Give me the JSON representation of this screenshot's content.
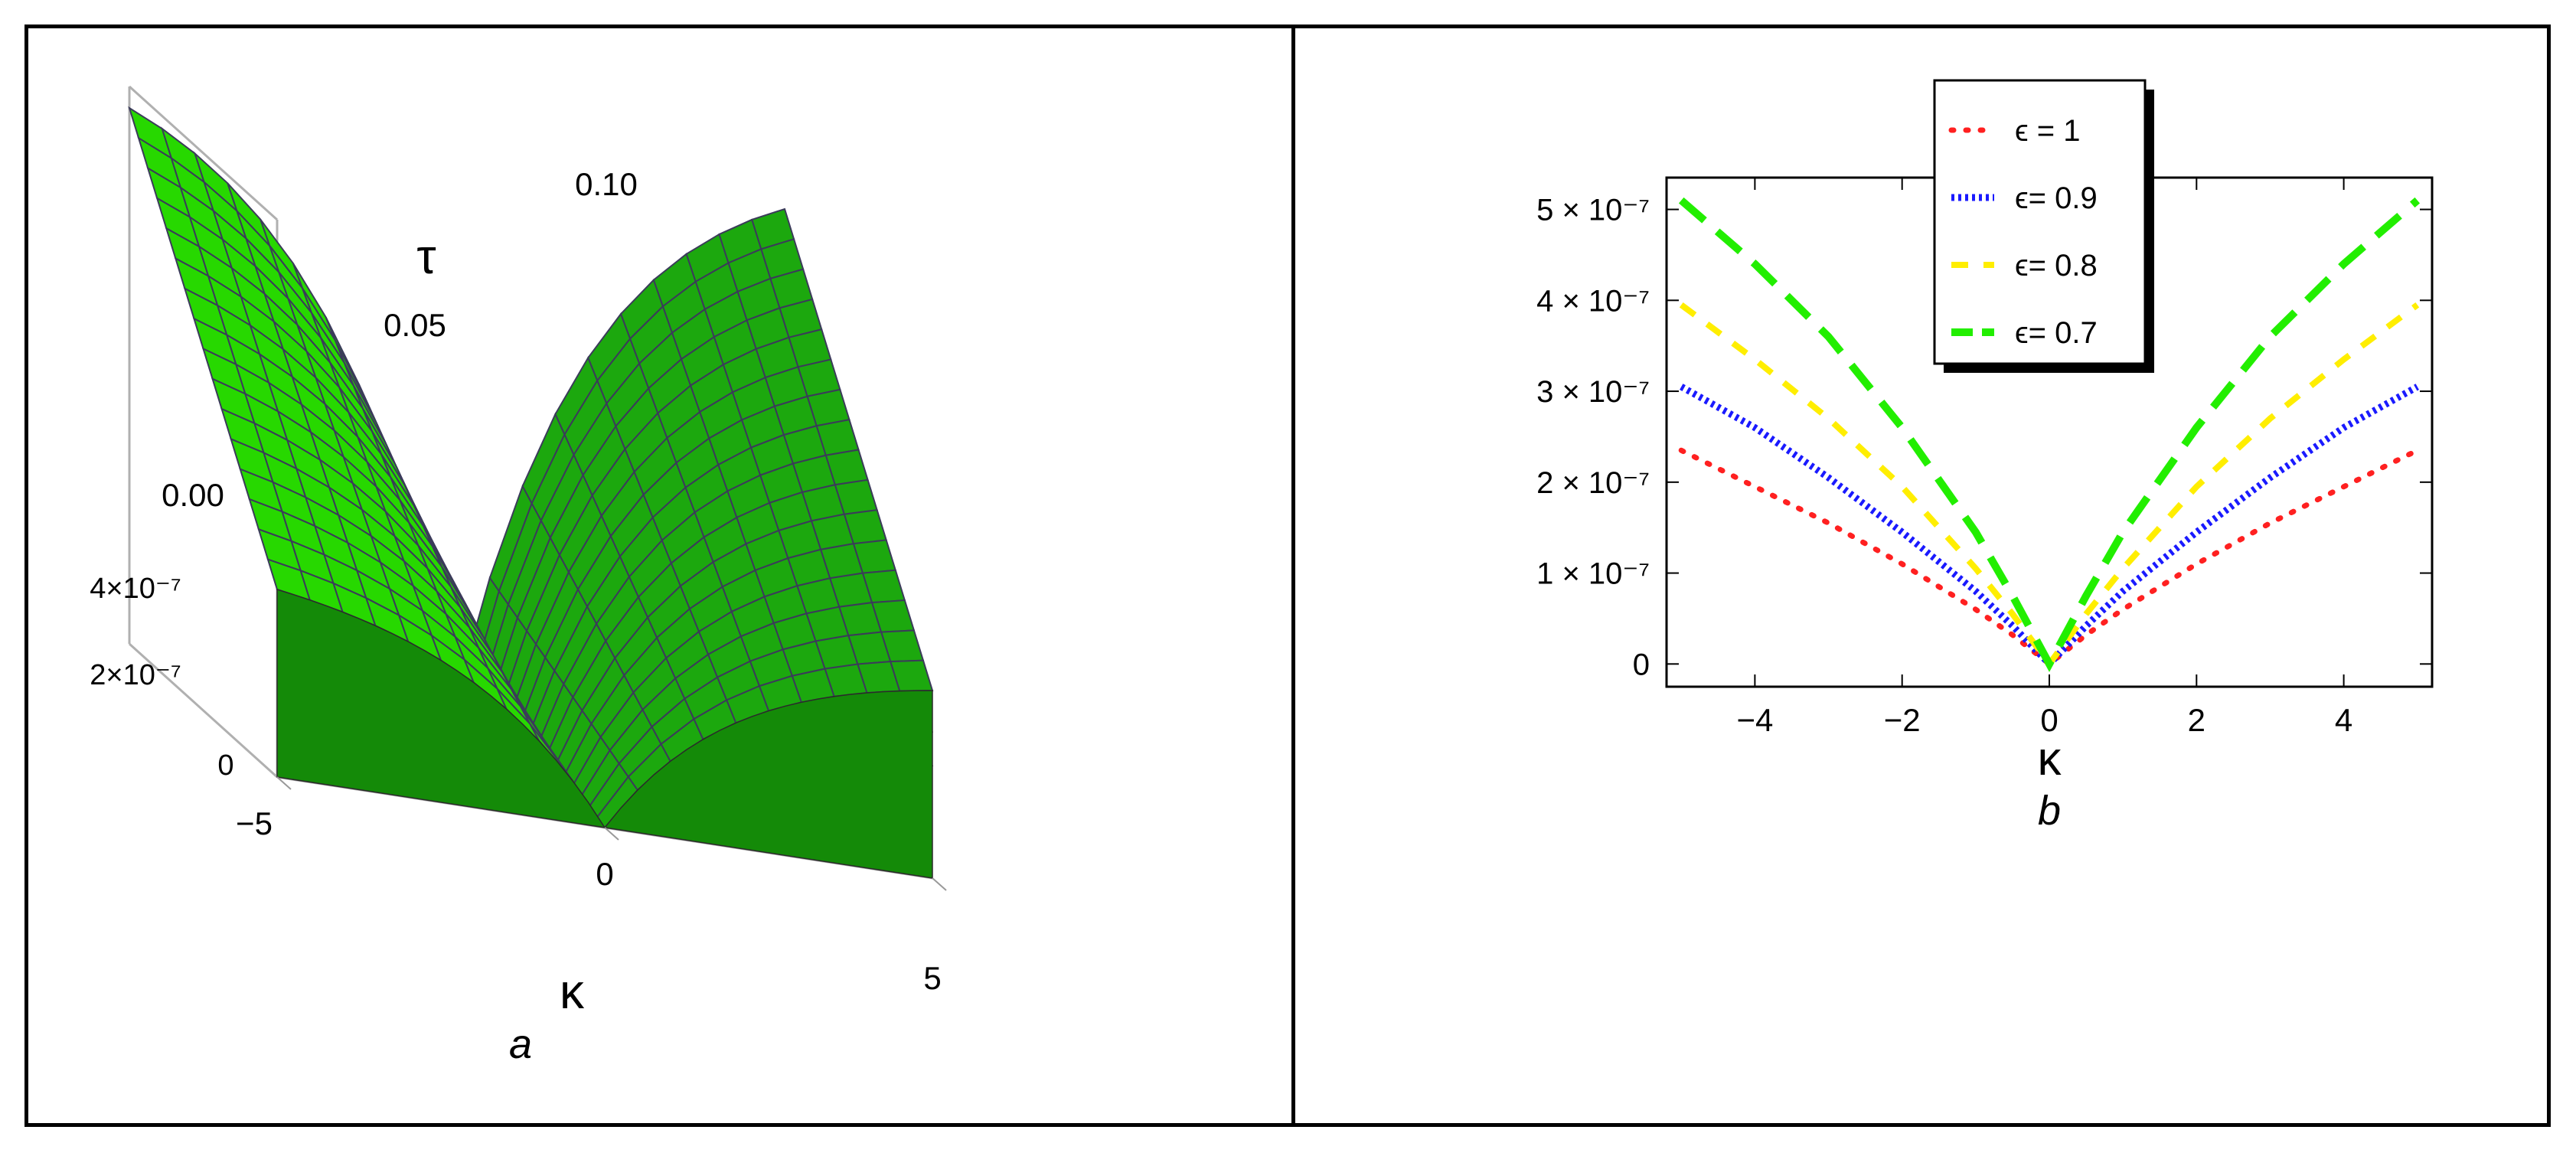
{
  "panel_a": {
    "caption": "a",
    "tau_label": "τ",
    "kappa_label": "κ",
    "tau_ticks": [
      "0.10",
      "0.05",
      "0.00"
    ],
    "z_ticks": [
      "4×10⁻⁷",
      "2×10⁻⁷",
      "0"
    ],
    "kappa_ticks": [
      "−5",
      "0",
      "5"
    ],
    "surface_colors": [
      "#22dd00",
      "#ffb400",
      "#0a0a9a",
      "#e00010"
    ]
  },
  "panel_b": {
    "caption": "b",
    "legend": [
      {
        "label": "ϵ = 1",
        "color": "#ff2020",
        "style": "dotted"
      },
      {
        "label": "ϵ= 0.9",
        "color": "#1a1aff",
        "style": "dense-dotted"
      },
      {
        "label": "ϵ= 0.8",
        "color": "#ffee00",
        "style": "dashed"
      },
      {
        "label": "ϵ= 0.7",
        "color": "#22ee00",
        "style": "long-dashed"
      }
    ]
  },
  "chart_data": [
    {
      "type": "surface",
      "panel": "a",
      "xlabel": "κ",
      "ylabel": "τ",
      "xlim": [
        -5,
        5
      ],
      "ylim": [
        0,
        0.1
      ],
      "zlim": [
        0,
        5.2e-07
      ],
      "x_ticks": [
        -5,
        0,
        5
      ],
      "y_ticks": [
        0,
        0.05,
        0.1
      ],
      "z_ticks": [
        0,
        2e-07,
        4e-07
      ],
      "series_names": [
        "ϵ = 0.7",
        "ϵ = 0.8",
        "ϵ = 0.9",
        "ϵ = 1"
      ]
    },
    {
      "type": "line",
      "panel": "b",
      "xlabel": "κ",
      "ylabel": "",
      "xlim": [
        -5.2,
        5.2
      ],
      "ylim": [
        -2.5e-08,
        5.35e-07
      ],
      "x_ticks": [
        -4,
        -2,
        0,
        2,
        4
      ],
      "y_ticks": [
        0,
        1e-07,
        2e-07,
        3e-07,
        4e-07,
        5e-07
      ],
      "y_tick_labels": [
        "0",
        "1 × 10⁻⁷",
        "2 × 10⁻⁷",
        "3 × 10⁻⁷",
        "4 × 10⁻⁷",
        "5 × 10⁻⁷"
      ],
      "x": [
        -5,
        -4,
        -3,
        -2,
        -1,
        -0.5,
        0,
        0.5,
        1,
        2,
        3,
        4,
        5
      ],
      "series": [
        {
          "name": "ϵ = 1",
          "values": [
            2.35e-07,
            1.95e-07,
            1.55e-07,
            1.1e-07,
            6e-08,
            3.2e-08,
            0,
            3.2e-08,
            6e-08,
            1.1e-07,
            1.55e-07,
            1.95e-07,
            2.35e-07
          ]
        },
        {
          "name": "ϵ= 0.9",
          "values": [
            3.05e-07,
            2.6e-07,
            2.05e-07,
            1.45e-07,
            8e-08,
            4.2e-08,
            0,
            4.2e-08,
            8e-08,
            1.45e-07,
            2.05e-07,
            2.6e-07,
            3.05e-07
          ]
        },
        {
          "name": "ϵ= 0.8",
          "values": [
            3.95e-07,
            3.35e-07,
            2.7e-07,
            1.95e-07,
            1.05e-07,
            5.5e-08,
            0,
            5.5e-08,
            1.05e-07,
            1.95e-07,
            2.7e-07,
            3.35e-07,
            3.95e-07
          ]
        },
        {
          "name": "ϵ= 0.7",
          "values": [
            5.1e-07,
            4.4e-07,
            3.6e-07,
            2.6e-07,
            1.45e-07,
            7.5e-08,
            0,
            7.5e-08,
            1.45e-07,
            2.6e-07,
            3.6e-07,
            4.4e-07,
            5.1e-07
          ]
        }
      ]
    }
  ]
}
